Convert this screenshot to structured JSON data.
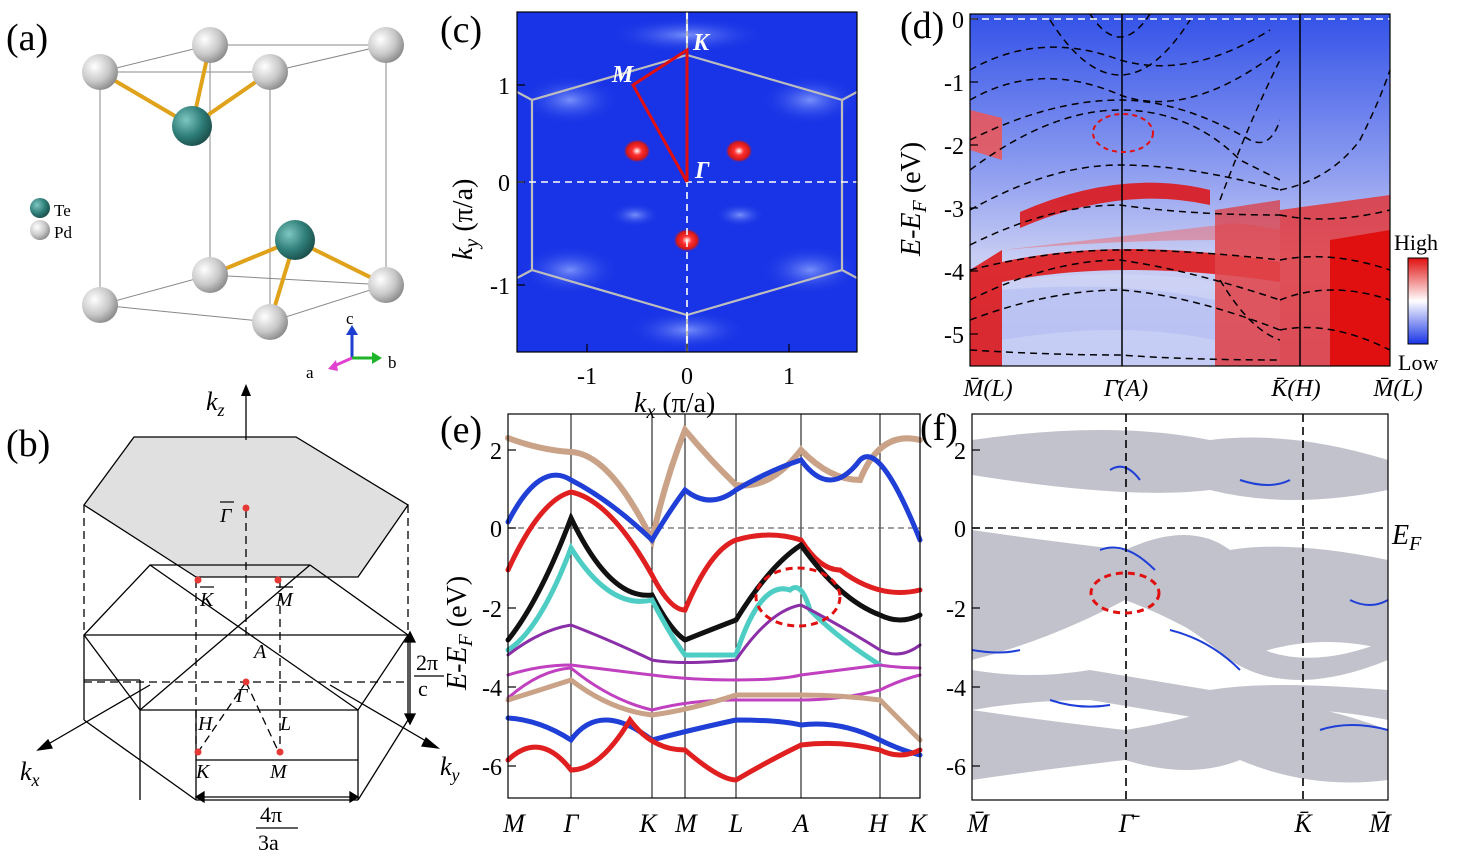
{
  "panel_labels": {
    "a": "(a)",
    "b": "(b)",
    "c": "(c)",
    "d": "(d)",
    "e": "(e)",
    "f": "(f)"
  },
  "panel_a": {
    "legend": [
      "Te",
      "Pd"
    ],
    "axes": {
      "c": "c",
      "a": "a",
      "b": "b"
    },
    "colors": {
      "te": "#2e7d78",
      "pd": "#bdbdbd",
      "bond": "#e0a21a"
    }
  },
  "panel_b": {
    "axes": {
      "kz": "k",
      "kz_sub": "z",
      "kx": "k",
      "kx_sub": "x",
      "ky": "k",
      "ky_sub": "y"
    },
    "points": {
      "gamma_bar": "Γ",
      "k_top": "K",
      "m_top": "M",
      "a": "A",
      "gamma": "Γ",
      "h": "H",
      "l": "L",
      "k_bot": "K",
      "m_bot": "M"
    },
    "dim_c": {
      "num": "2π",
      "den": "c"
    },
    "dim_a": {
      "num": "4π",
      "den": "3a"
    }
  },
  "panel_c": {
    "points": {
      "K": "K",
      "M": "M",
      "Gamma": "Γ"
    },
    "ylabel": "k",
    "ylabel_sub": "y",
    "ylabel_unit": " (π/a)",
    "xlabel": "k",
    "xlabel_sub": "x",
    "xlabel_unit": " (π/a)",
    "yticks": [
      "1",
      "0",
      "-1"
    ],
    "xticks": [
      "-1",
      "0",
      "1"
    ],
    "hot_spots": [
      {
        "kx": -0.5,
        "ky": 0.32
      },
      {
        "kx": 0.52,
        "ky": 0.32
      },
      {
        "kx": 0.0,
        "ky": -0.6
      }
    ]
  },
  "panel_d": {
    "ylabel": "E-E",
    "ylabel_sub": "F",
    "ylabel_unit": " (eV)",
    "yticks": [
      "0",
      "-1",
      "-2",
      "-3",
      "-4",
      "-5"
    ],
    "ylim": [
      -5.5,
      0.1
    ],
    "colorbar_high": "High",
    "colorbar_low": "Low",
    "xticks": [
      "M̄(L)",
      "Γ̄(A)",
      "K̄(H)",
      "M̄(L)"
    ]
  },
  "panel_e": {
    "ylabel": "E-E",
    "ylabel_sub": "F",
    "ylabel_unit": " (eV)",
    "yticks": [
      "2",
      "0",
      "-2",
      "-4",
      "-6"
    ],
    "ylim": [
      -7,
      2.6
    ],
    "xticks": [
      "M",
      "Γ",
      "K",
      "M",
      "L",
      "A",
      "H",
      "K"
    ],
    "band_colors": [
      "#c9a288",
      "#1f3fd6",
      "#e02020",
      "#111111",
      "#4ecdc4",
      "#8a2fa8",
      "#c040c0",
      "#c9a288",
      "#1f3fd6",
      "#e02020"
    ]
  },
  "panel_f": {
    "yticks": [
      "2",
      "0",
      "-2",
      "-4",
      "-6"
    ],
    "ylim": [
      -7,
      2.6
    ],
    "ef_label": "E",
    "ef_sub": "F",
    "xticks": [
      "M̄",
      "Γ̄",
      "K̄",
      "M̄"
    ]
  }
}
